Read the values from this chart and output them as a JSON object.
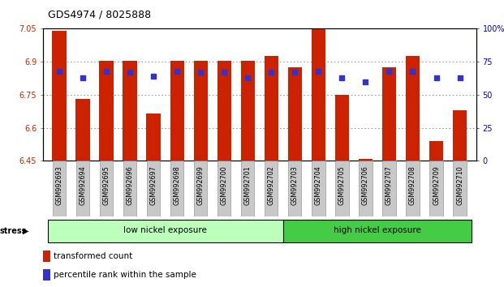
{
  "title": "GDS4974 / 8025888",
  "samples": [
    "GSM992693",
    "GSM992694",
    "GSM992695",
    "GSM992696",
    "GSM992697",
    "GSM992698",
    "GSM992699",
    "GSM992700",
    "GSM992701",
    "GSM992702",
    "GSM992703",
    "GSM992704",
    "GSM992705",
    "GSM992706",
    "GSM992707",
    "GSM992708",
    "GSM992709",
    "GSM992710"
  ],
  "bar_values": [
    7.04,
    6.73,
    6.905,
    6.905,
    6.665,
    6.905,
    6.905,
    6.905,
    6.905,
    6.925,
    6.875,
    7.05,
    6.75,
    6.46,
    6.875,
    6.925,
    6.54,
    6.68
  ],
  "percentile_values": [
    68,
    63,
    68,
    67,
    64,
    68,
    67,
    67,
    63,
    67,
    67,
    68,
    63,
    60,
    68,
    68,
    63,
    63
  ],
  "ymin": 6.45,
  "ymax": 7.05,
  "yticks": [
    6.45,
    6.6,
    6.75,
    6.9,
    7.05
  ],
  "ytick_labels": [
    "6.45",
    "6.6",
    "6.75",
    "6.9",
    "7.05"
  ],
  "right_yticks": [
    0,
    25,
    50,
    75,
    100
  ],
  "right_ytick_labels": [
    "0",
    "25",
    "50",
    "75",
    "100%"
  ],
  "bar_color": "#cc2200",
  "dot_color": "#3333cc",
  "groups": [
    {
      "label": "low nickel exposure",
      "start": 0,
      "end": 10,
      "color": "#bbffbb"
    },
    {
      "label": "high nickel exposure",
      "start": 10,
      "end": 18,
      "color": "#44cc44"
    }
  ],
  "stress_label": "stress",
  "legend_items": [
    {
      "label": "transformed count",
      "color": "#cc2200"
    },
    {
      "label": "percentile rank within the sample",
      "color": "#3333cc"
    }
  ],
  "left_tick_color": "#cc2200",
  "right_tick_color": "#0000cc",
  "grid_color": "#888888",
  "background_color": "#ffffff",
  "bar_width": 0.6,
  "xtick_bg": "#c8c8c8"
}
